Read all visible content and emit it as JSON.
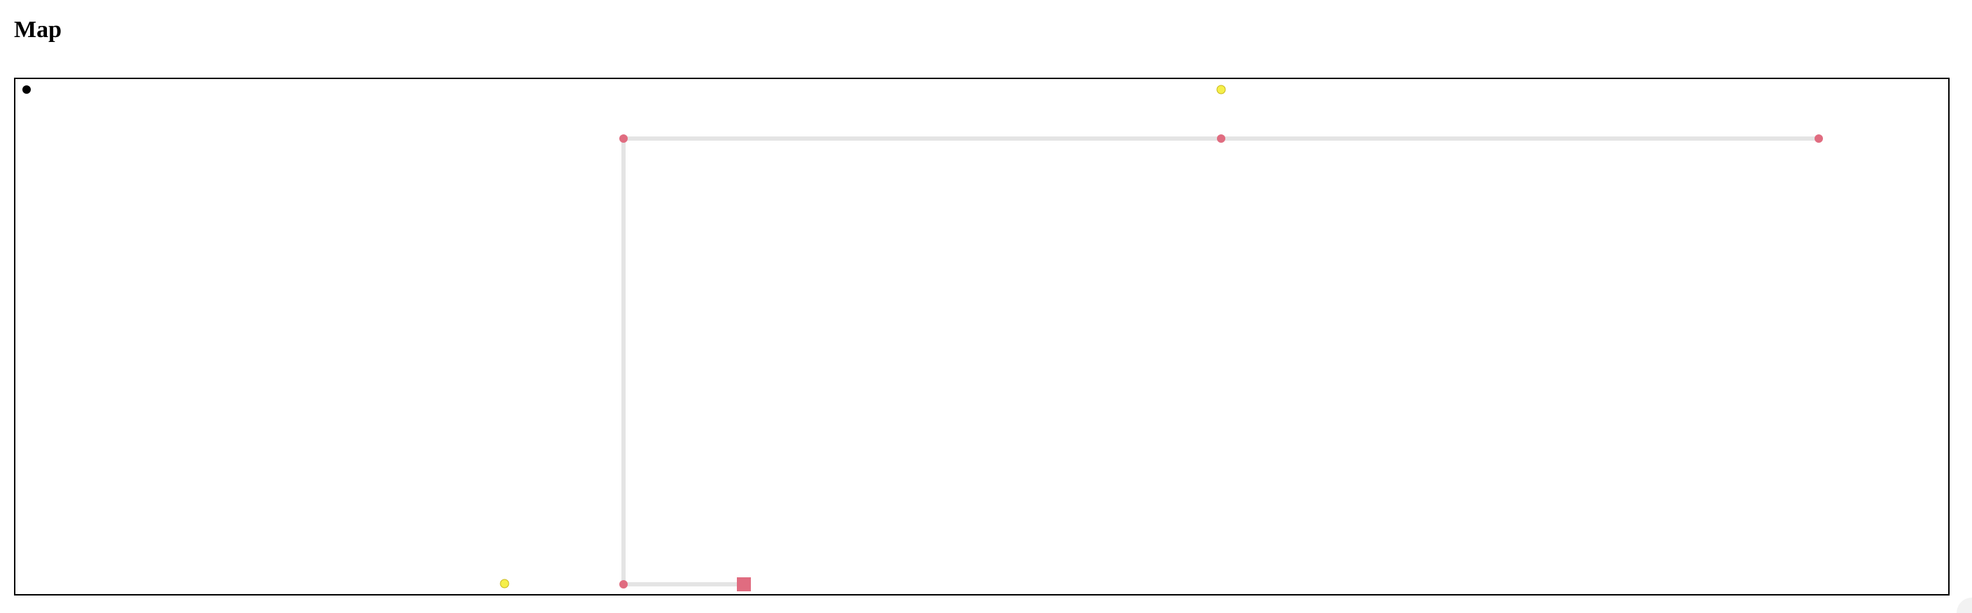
{
  "page": {
    "title": "Map"
  },
  "map": {
    "colors": {
      "background": "#ffffff",
      "border": "#000000",
      "path": "#e4e4e4",
      "route_node": "#e06c80",
      "target": "#e06c80",
      "collectible": "#f5ef4a",
      "player": "#000000"
    },
    "legend_icons": {
      "player": "player-marker",
      "route_node": "waypoint-node",
      "target": "destination-square",
      "collectible": "yellow-item"
    }
  }
}
